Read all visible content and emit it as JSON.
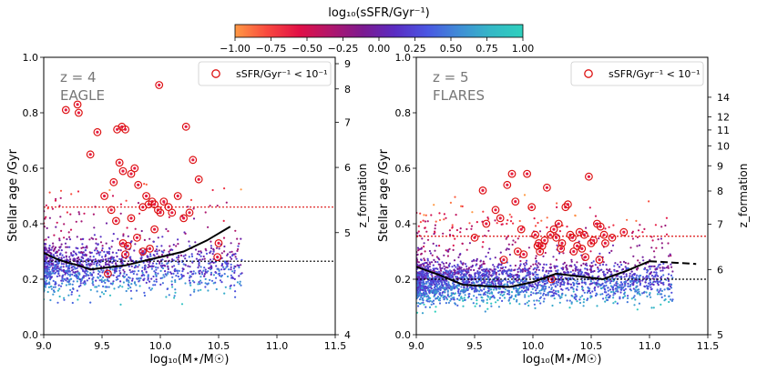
{
  "colorbar": {
    "label": "log₁₀(sSFR/Gyr⁻¹)",
    "range": [
      -1.0,
      1.0
    ],
    "ticks": [
      -1.0,
      -0.75,
      -0.5,
      -0.25,
      0.0,
      0.25,
      0.5,
      0.75,
      1.0
    ],
    "tick_labels": [
      "−1.00",
      "−0.75",
      "−0.50",
      "−0.25",
      "0.00",
      "0.25",
      "0.50",
      "0.75",
      "1.00"
    ],
    "colors": [
      "#ff9944",
      "#f9493f",
      "#e11046",
      "#b0166c",
      "#7c1a90",
      "#5a2cc2",
      "#4a56e2",
      "#3f8cd6",
      "#35b8c6",
      "#2ed0bd"
    ]
  },
  "colors": {
    "quenched_marker": "#dd1111",
    "median_line": "#000000",
    "quenched_threshold_line": "#dd1111",
    "reference_line": "#000000"
  },
  "chart_data": [
    {
      "type": "scatter",
      "panel": "left",
      "title": "z = 4",
      "annotation_redshift": "z = 4",
      "annotation_sim": "EAGLE",
      "xlabel": "log₁₀(M⋆/M☉)",
      "ylabel": "Stellar age /Gyr",
      "y2label": "z_formation",
      "xlim": [
        9.0,
        11.5
      ],
      "ylim": [
        0.0,
        1.0
      ],
      "xticks": [
        9.0,
        9.5,
        10.0,
        10.5,
        11.0,
        11.5
      ],
      "xtick_labels": [
        "9.0",
        "9.5",
        "10.0",
        "10.5",
        "11.0",
        "11.5"
      ],
      "yticks": [
        0.0,
        0.2,
        0.4,
        0.6,
        0.8,
        1.0
      ],
      "ytick_labels": [
        "0.0",
        "0.2",
        "0.4",
        "0.6",
        "0.8",
        "1.0"
      ],
      "y2ticks": [
        {
          "label": "4",
          "age": 0.0
        },
        {
          "label": "5",
          "age": 0.368
        },
        {
          "label": "6",
          "age": 0.603
        },
        {
          "label": "7",
          "age": 0.766
        },
        {
          "label": "8",
          "age": 0.886
        },
        {
          "label": "9",
          "age": 0.977
        }
      ],
      "legend": {
        "label": "sSFR/Gyr⁻¹ < 10⁻¹",
        "position": "top-right"
      },
      "cloud": {
        "n": 1400,
        "x_range": [
          9.0,
          10.7
        ],
        "center": 0.24,
        "spread": 0.06,
        "top": 0.7,
        "bottom": 0.02,
        "seed": 11
      },
      "quenched_points": [
        [
          9.19,
          0.81
        ],
        [
          9.29,
          0.83
        ],
        [
          9.3,
          0.8
        ],
        [
          9.4,
          0.65
        ],
        [
          9.46,
          0.73
        ],
        [
          9.52,
          0.5
        ],
        [
          9.58,
          0.45
        ],
        [
          9.6,
          0.55
        ],
        [
          9.63,
          0.74
        ],
        [
          9.67,
          0.75
        ],
        [
          9.7,
          0.74
        ],
        [
          9.65,
          0.62
        ],
        [
          9.68,
          0.59
        ],
        [
          9.75,
          0.58
        ],
        [
          9.78,
          0.6
        ],
        [
          9.81,
          0.54
        ],
        [
          9.85,
          0.46
        ],
        [
          9.88,
          0.5
        ],
        [
          9.9,
          0.47
        ],
        [
          9.93,
          0.48
        ],
        [
          9.95,
          0.47
        ],
        [
          9.98,
          0.45
        ],
        [
          10.0,
          0.44
        ],
        [
          10.03,
          0.48
        ],
        [
          10.07,
          0.46
        ],
        [
          10.1,
          0.44
        ],
        [
          10.15,
          0.5
        ],
        [
          10.2,
          0.42
        ],
        [
          10.25,
          0.44
        ],
        [
          10.28,
          0.63
        ],
        [
          10.33,
          0.56
        ],
        [
          9.62,
          0.41
        ],
        [
          9.68,
          0.33
        ],
        [
          9.7,
          0.29
        ],
        [
          9.75,
          0.42
        ],
        [
          9.8,
          0.35
        ],
        [
          9.85,
          0.3
        ],
        [
          9.91,
          0.31
        ],
        [
          9.95,
          0.38
        ],
        [
          9.99,
          0.9
        ],
        [
          10.22,
          0.75
        ],
        [
          10.49,
          0.28
        ],
        [
          10.5,
          0.33
        ],
        [
          9.55,
          0.22
        ],
        [
          9.72,
          0.32
        ]
      ],
      "median_line": {
        "x": [
          9.0,
          9.1,
          9.2,
          9.3,
          9.4,
          9.5,
          9.6,
          9.7,
          9.8,
          9.9,
          10.0,
          10.1,
          10.2,
          10.3,
          10.4,
          10.5,
          10.6
        ],
        "y": [
          0.295,
          0.275,
          0.26,
          0.25,
          0.235,
          0.24,
          0.245,
          0.25,
          0.26,
          0.27,
          0.28,
          0.29,
          0.3,
          0.32,
          0.34,
          0.365,
          0.39
        ]
      },
      "quenched_threshold_y": 0.46,
      "reference_y": 0.265
    },
    {
      "type": "scatter",
      "panel": "right",
      "title": "z = 5",
      "annotation_redshift": "z = 5",
      "annotation_sim": "FLARES",
      "xlabel": "log₁₀(M⋆/M☉)",
      "ylabel": "Stellar age /Gyr",
      "y2label": "z_formation",
      "xlim": [
        9.0,
        11.5
      ],
      "ylim": [
        0.0,
        1.0
      ],
      "xticks": [
        9.0,
        9.5,
        10.0,
        10.5,
        11.0,
        11.5
      ],
      "xtick_labels": [
        "9.0",
        "9.5",
        "10.0",
        "10.5",
        "11.0",
        "11.5"
      ],
      "yticks": [
        0.0,
        0.2,
        0.4,
        0.6,
        0.8,
        1.0
      ],
      "ytick_labels": [
        "0.0",
        "0.2",
        "0.4",
        "0.6",
        "0.8",
        "1.0"
      ],
      "y2ticks": [
        {
          "label": "5",
          "age": 0.0
        },
        {
          "label": "6",
          "age": 0.235
        },
        {
          "label": "7",
          "age": 0.398
        },
        {
          "label": "8",
          "age": 0.518
        },
        {
          "label": "9",
          "age": 0.609
        },
        {
          "label": "10",
          "age": 0.681
        },
        {
          "label": "11",
          "age": 0.738
        },
        {
          "label": "12",
          "age": 0.785
        },
        {
          "label": "14",
          "age": 0.856
        }
      ],
      "legend": {
        "label": "sSFR/Gyr⁻¹ < 10⁻¹",
        "position": "top-right"
      },
      "cloud": {
        "n": 2600,
        "x_range": [
          9.0,
          11.2
        ],
        "center": 0.19,
        "spread": 0.05,
        "top": 0.58,
        "bottom": 0.02,
        "seed": 23
      },
      "quenched_points": [
        [
          9.57,
          0.52
        ],
        [
          9.68,
          0.45
        ],
        [
          9.72,
          0.42
        ],
        [
          9.78,
          0.54
        ],
        [
          9.82,
          0.58
        ],
        [
          9.85,
          0.48
        ],
        [
          9.9,
          0.38
        ],
        [
          9.95,
          0.58
        ],
        [
          9.99,
          0.46
        ],
        [
          10.04,
          0.32
        ],
        [
          10.06,
          0.3
        ],
        [
          10.1,
          0.34
        ],
        [
          10.12,
          0.53
        ],
        [
          10.15,
          0.36
        ],
        [
          10.18,
          0.38
        ],
        [
          10.2,
          0.35
        ],
        [
          10.22,
          0.4
        ],
        [
          10.25,
          0.33
        ],
        [
          10.28,
          0.46
        ],
        [
          10.3,
          0.47
        ],
        [
          10.32,
          0.36
        ],
        [
          10.34,
          0.35
        ],
        [
          10.38,
          0.32
        ],
        [
          10.4,
          0.37
        ],
        [
          10.42,
          0.31
        ],
        [
          10.45,
          0.28
        ],
        [
          10.48,
          0.57
        ],
        [
          10.5,
          0.33
        ],
        [
          10.52,
          0.34
        ],
        [
          10.55,
          0.4
        ],
        [
          10.58,
          0.39
        ],
        [
          10.61,
          0.36
        ],
        [
          10.62,
          0.33
        ],
        [
          10.68,
          0.35
        ],
        [
          9.5,
          0.35
        ],
        [
          9.6,
          0.4
        ],
        [
          9.75,
          0.27
        ],
        [
          9.92,
          0.29
        ],
        [
          10.02,
          0.36
        ],
        [
          10.08,
          0.32
        ],
        [
          10.16,
          0.2
        ],
        [
          10.35,
          0.3
        ],
        [
          10.78,
          0.37
        ],
        [
          10.05,
          0.33
        ],
        [
          10.24,
          0.31
        ],
        [
          10.44,
          0.36
        ],
        [
          10.57,
          0.27
        ],
        [
          9.87,
          0.3
        ]
      ],
      "median_line": {
        "x": [
          9.0,
          9.2,
          9.4,
          9.6,
          9.8,
          10.0,
          10.2,
          10.4,
          10.6,
          10.8,
          11.0
        ],
        "y": [
          0.245,
          0.215,
          0.18,
          0.175,
          0.172,
          0.19,
          0.22,
          0.21,
          0.2,
          0.23,
          0.265
        ]
      },
      "median_extension": {
        "x": [
          11.0,
          11.2,
          11.4
        ],
        "y": [
          0.265,
          0.26,
          0.255
        ]
      },
      "quenched_threshold_y": 0.355,
      "reference_y": 0.2
    }
  ]
}
